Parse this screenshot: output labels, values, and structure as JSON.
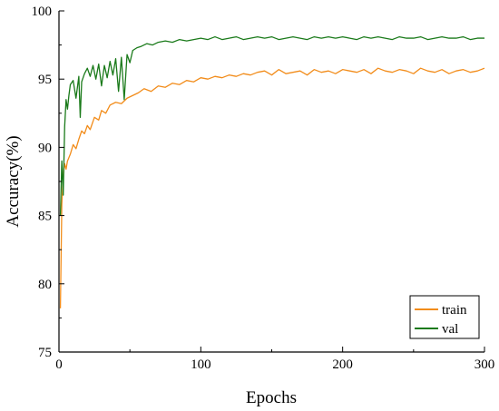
{
  "chart_data": {
    "type": "line",
    "title": "",
    "xlabel": "Epochs",
    "ylabel": "Accuracy(%)",
    "xlim": [
      0,
      300
    ],
    "ylim": [
      75,
      100
    ],
    "xticks": [
      0,
      100,
      200,
      300
    ],
    "yticks": [
      75,
      80,
      85,
      90,
      95,
      100
    ],
    "grid": false,
    "legend_position": "bottom-right",
    "series": [
      {
        "name": "train",
        "color": "#f28c1a",
        "x": [
          1,
          2,
          3,
          4,
          5,
          6,
          8,
          10,
          12,
          14,
          16,
          18,
          20,
          22,
          25,
          28,
          30,
          33,
          36,
          40,
          44,
          48,
          52,
          56,
          60,
          65,
          70,
          75,
          80,
          85,
          90,
          95,
          100,
          105,
          110,
          115,
          120,
          125,
          130,
          135,
          140,
          145,
          150,
          155,
          160,
          165,
          170,
          175,
          180,
          185,
          190,
          195,
          200,
          205,
          210,
          215,
          220,
          225,
          230,
          235,
          240,
          245,
          250,
          255,
          260,
          265,
          270,
          275,
          280,
          285,
          290,
          295,
          300
        ],
        "values": [
          78.2,
          85.8,
          88.0,
          88.8,
          88.4,
          89.0,
          89.5,
          90.2,
          89.9,
          90.6,
          91.2,
          91.0,
          91.6,
          91.3,
          92.2,
          92.0,
          92.7,
          92.5,
          93.1,
          93.3,
          93.2,
          93.6,
          93.8,
          94.0,
          94.3,
          94.1,
          94.5,
          94.4,
          94.7,
          94.6,
          94.9,
          94.8,
          95.1,
          95.0,
          95.2,
          95.1,
          95.3,
          95.2,
          95.4,
          95.3,
          95.5,
          95.6,
          95.3,
          95.7,
          95.4,
          95.5,
          95.6,
          95.3,
          95.7,
          95.5,
          95.6,
          95.4,
          95.7,
          95.6,
          95.5,
          95.7,
          95.4,
          95.8,
          95.6,
          95.5,
          95.7,
          95.6,
          95.4,
          95.8,
          95.6,
          95.5,
          95.7,
          95.4,
          95.6,
          95.7,
          95.5,
          95.6,
          95.8
        ]
      },
      {
        "name": "val",
        "color": "#1a7a1a",
        "x": [
          1,
          2,
          3,
          4,
          5,
          6,
          7,
          8,
          10,
          12,
          14,
          15,
          16,
          18,
          20,
          22,
          24,
          26,
          28,
          30,
          32,
          34,
          36,
          38,
          40,
          42,
          44,
          46,
          48,
          50,
          52,
          55,
          58,
          62,
          66,
          70,
          75,
          80,
          85,
          90,
          95,
          100,
          105,
          110,
          115,
          120,
          125,
          130,
          135,
          140,
          145,
          150,
          155,
          160,
          165,
          170,
          175,
          180,
          185,
          190,
          195,
          200,
          205,
          210,
          215,
          220,
          225,
          230,
          235,
          240,
          245,
          250,
          255,
          260,
          265,
          270,
          275,
          280,
          285,
          290,
          295,
          300
        ],
        "values": [
          85.0,
          89.0,
          86.5,
          91.5,
          93.5,
          92.8,
          93.8,
          94.6,
          94.9,
          93.6,
          95.2,
          92.2,
          94.8,
          95.4,
          95.8,
          95.2,
          96.0,
          95.0,
          96.1,
          94.5,
          96.0,
          95.1,
          96.3,
          95.3,
          96.5,
          94.1,
          96.6,
          93.5,
          96.8,
          96.2,
          97.1,
          97.3,
          97.4,
          97.6,
          97.5,
          97.7,
          97.8,
          97.7,
          97.9,
          97.8,
          97.9,
          98.0,
          97.9,
          98.1,
          97.9,
          98.0,
          98.1,
          97.9,
          98.0,
          98.1,
          98.0,
          98.1,
          97.9,
          98.0,
          98.1,
          98.0,
          97.9,
          98.1,
          98.0,
          98.1,
          98.0,
          98.1,
          98.0,
          97.9,
          98.1,
          98.0,
          98.1,
          98.0,
          97.9,
          98.1,
          98.0,
          98.0,
          98.1,
          97.9,
          98.0,
          98.1,
          98.0,
          98.0,
          98.1,
          97.9,
          98.0,
          98.0
        ]
      }
    ]
  }
}
